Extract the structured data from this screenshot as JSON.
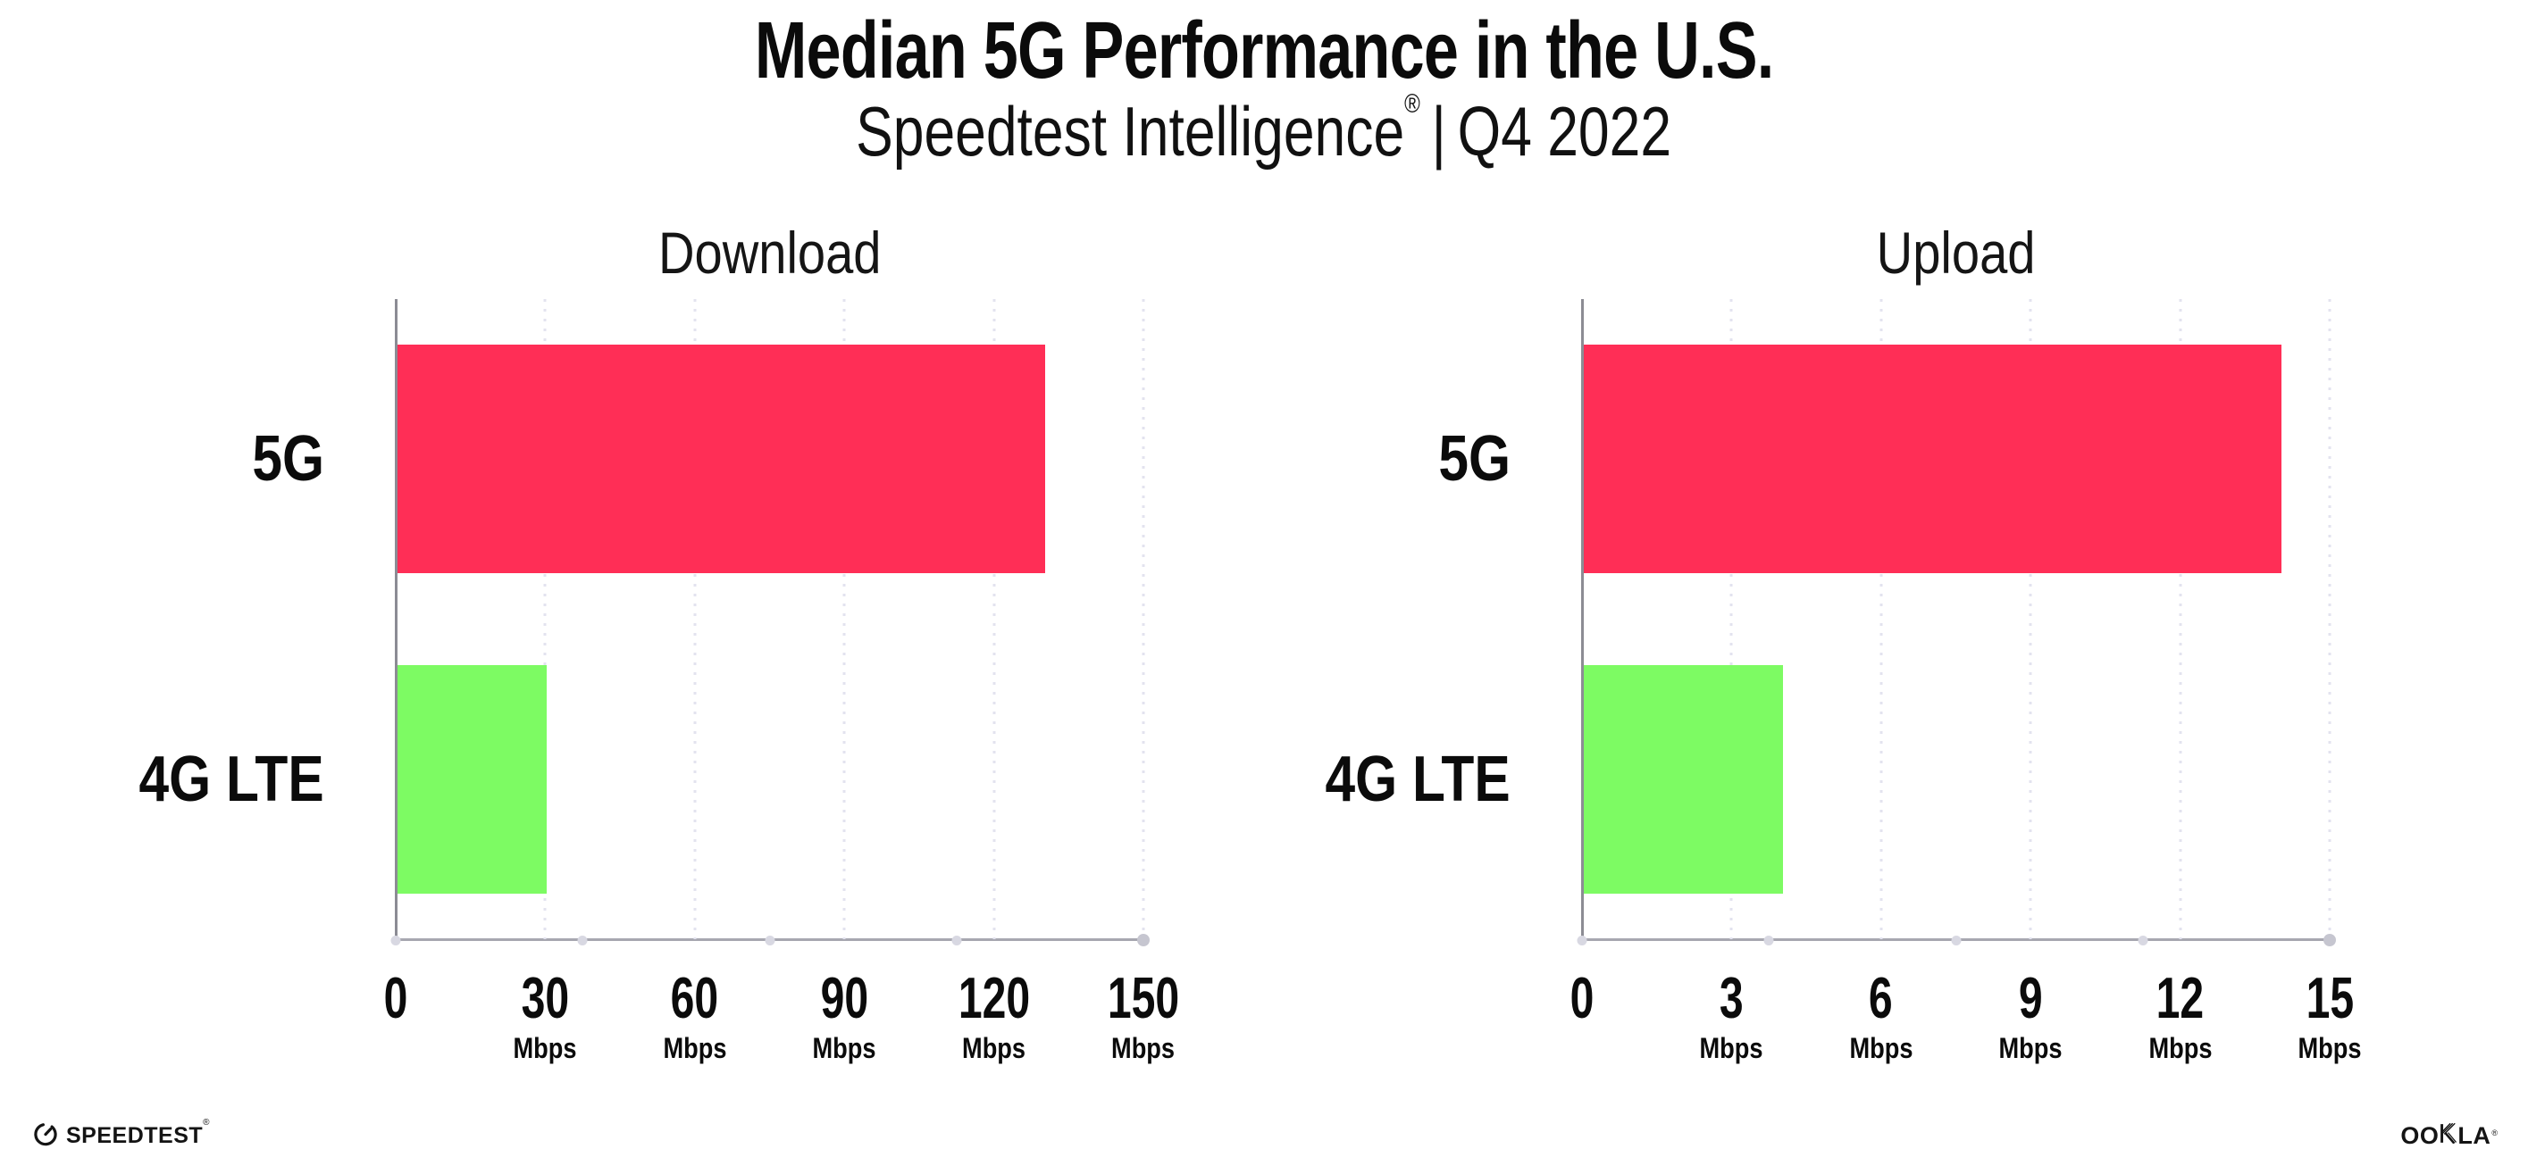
{
  "header": {
    "title": "Median 5G Performance in the U.S.",
    "subtitle": {
      "brand": "Speedtest Intelligence",
      "registered_mark": "®",
      "separator": "|",
      "period": "Q4 2022"
    }
  },
  "chart_data": {
    "type": "bar",
    "orientation": "horizontal",
    "unit": "Mbps",
    "categories": [
      "5G",
      "4G LTE"
    ],
    "series_colors": {
      "5G": "#FF2E56",
      "4G LTE": "#7DFB63"
    },
    "grid": "dotted-vertical-at-ticks",
    "legend_position": "none",
    "charts": [
      {
        "title": "Download",
        "xlim": [
          0,
          150
        ],
        "xticks": [
          0,
          30,
          60,
          90,
          120,
          150
        ],
        "values": {
          "5G": 130,
          "4G LTE": 30
        }
      },
      {
        "title": "Upload",
        "xlim": [
          0,
          15
        ],
        "xticks": [
          0,
          3,
          6,
          9,
          12,
          15
        ],
        "values": {
          "5G": 14,
          "4G LTE": 4
        }
      }
    ]
  },
  "footer": {
    "speedtest": {
      "wordmark": "SPEEDTEST",
      "trademark": "®"
    },
    "ookla": {
      "wordmark": "OOKLA",
      "wordmark_parts": [
        "OO",
        "K",
        "LA"
      ],
      "registered_mark": "®"
    }
  },
  "colors": {
    "background": "#FFFFFF",
    "bar_5g": "#FF2E56",
    "bar_4g_lte": "#7DFB63",
    "axis_line": "#A7A7B0",
    "axis_spine": "#8C8C94",
    "gridline": "#E3E3EB",
    "text": "#0B0B0B"
  }
}
